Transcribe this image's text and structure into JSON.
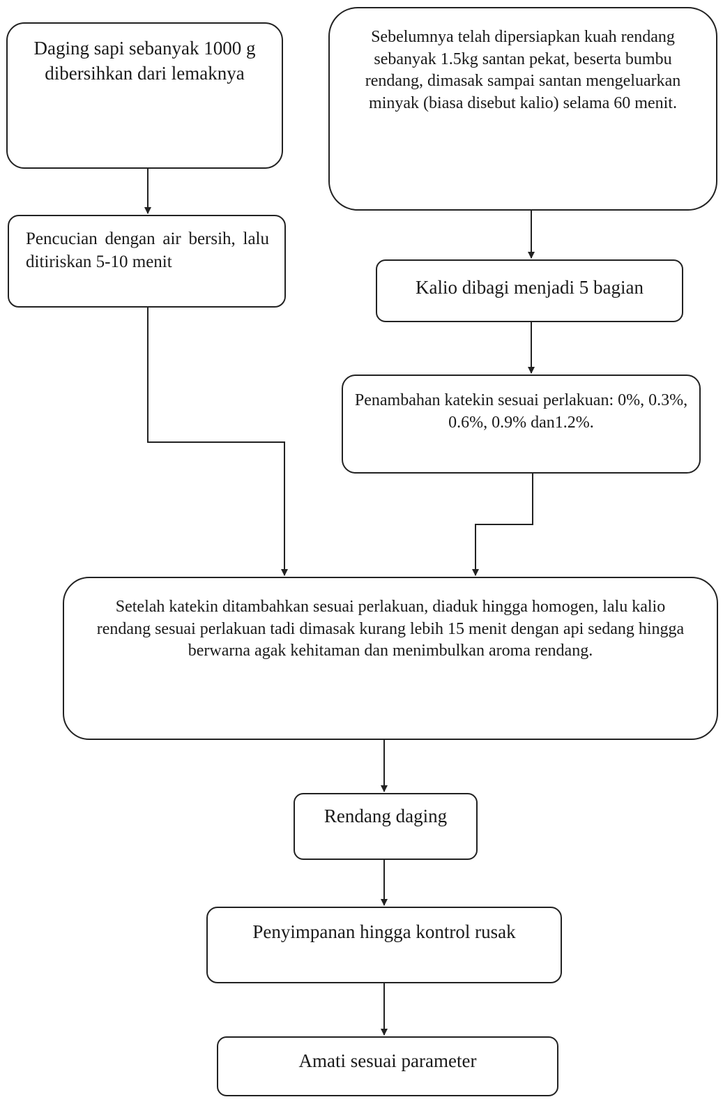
{
  "diagram": {
    "boxes": {
      "daging": "Daging sapi sebanyak 1000 g dibersihkan dari lemaknya",
      "kuah": "Sebelumnya telah dipersiapkan kuah rendang sebanyak 1.5kg santan pekat, beserta bumbu rendang, dimasak sampai santan mengeluarkan minyak (biasa disebut kalio) selama 60 menit.",
      "pencucian": "Pencucian dengan air bersih, lalu ditiriskan 5-10 menit",
      "kalio": "Kalio dibagi menjadi 5 bagian",
      "katekin": "Penambahan katekin sesuai perlakuan: 0%, 0.3%, 0.6%, 0.9% dan1.2%.",
      "setelah": "Setelah katekin ditambahkan sesuai perlakuan, diaduk hingga homogen, lalu kalio rendang sesuai perlakuan tadi dimasak kurang lebih 15 menit dengan api sedang hingga berwarna agak kehitaman dan menimbulkan aroma rendang.",
      "rendang": "Rendang daging",
      "penyimpanan": "Penyimpanan hingga kontrol rusak",
      "amati": "Amati sesuai parameter"
    },
    "colors": {
      "line": "#222222",
      "text": "#1a1a1a",
      "background": "#ffffff"
    }
  }
}
